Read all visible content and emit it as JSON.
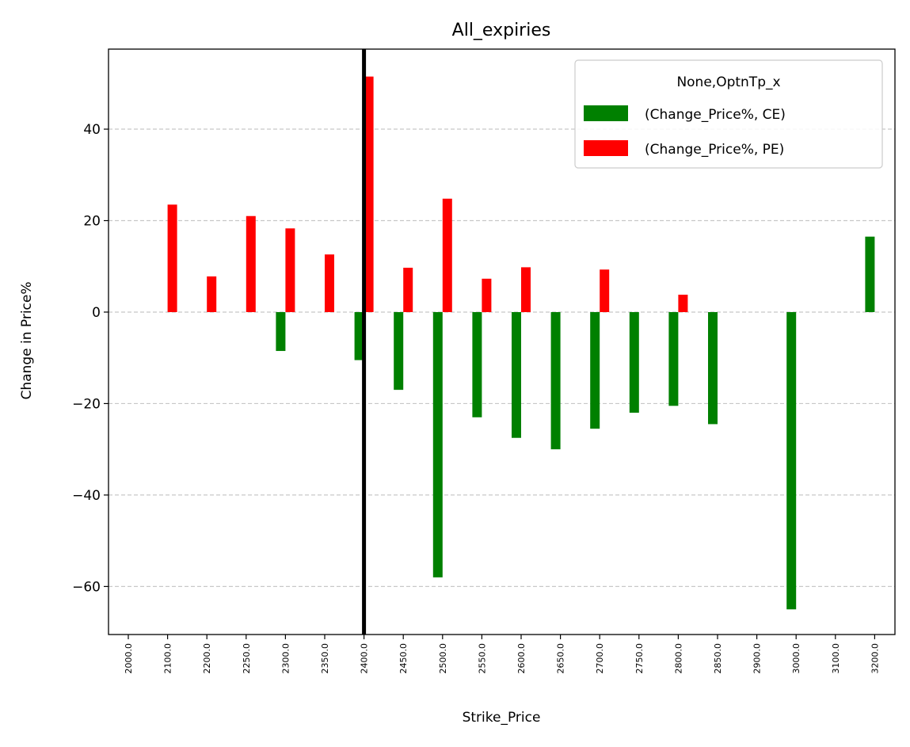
{
  "chart_data": {
    "type": "bar",
    "title": "All_expiries",
    "xlabel": "Strike_Price",
    "ylabel": "Change in Price%",
    "categories": [
      "2000.0",
      "2100.0",
      "2200.0",
      "2250.0",
      "2300.0",
      "2350.0",
      "2400.0",
      "2450.0",
      "2500.0",
      "2550.0",
      "2600.0",
      "2650.0",
      "2700.0",
      "2750.0",
      "2800.0",
      "2850.0",
      "2900.0",
      "3000.0",
      "3100.0",
      "3200.0"
    ],
    "series": [
      {
        "name": "(Change_Price%, CE)",
        "color": "#008000",
        "values": [
          null,
          null,
          null,
          null,
          -8.5,
          null,
          -10.5,
          -17,
          -58,
          -23,
          -27.5,
          -30,
          -25.5,
          -22,
          -20.5,
          -24.5,
          null,
          -65,
          null,
          16.5
        ]
      },
      {
        "name": "(Change_Price%, PE)",
        "color": "#ff0000",
        "values": [
          null,
          23.5,
          7.8,
          21,
          18.3,
          12.6,
          51.5,
          9.7,
          24.8,
          7.3,
          9.8,
          null,
          9.3,
          null,
          3.8,
          null,
          null,
          null,
          null,
          null
        ]
      }
    ],
    "yticks": [
      -60,
      -40,
      -20,
      0,
      20,
      40
    ],
    "ylim": [
      -70.5,
      57.5
    ],
    "grid": "y-dashed",
    "legend": {
      "title": "None,OptnTp_x",
      "placement": "top-right"
    },
    "reference_line": {
      "category": "2400.0",
      "color": "#000000"
    }
  }
}
